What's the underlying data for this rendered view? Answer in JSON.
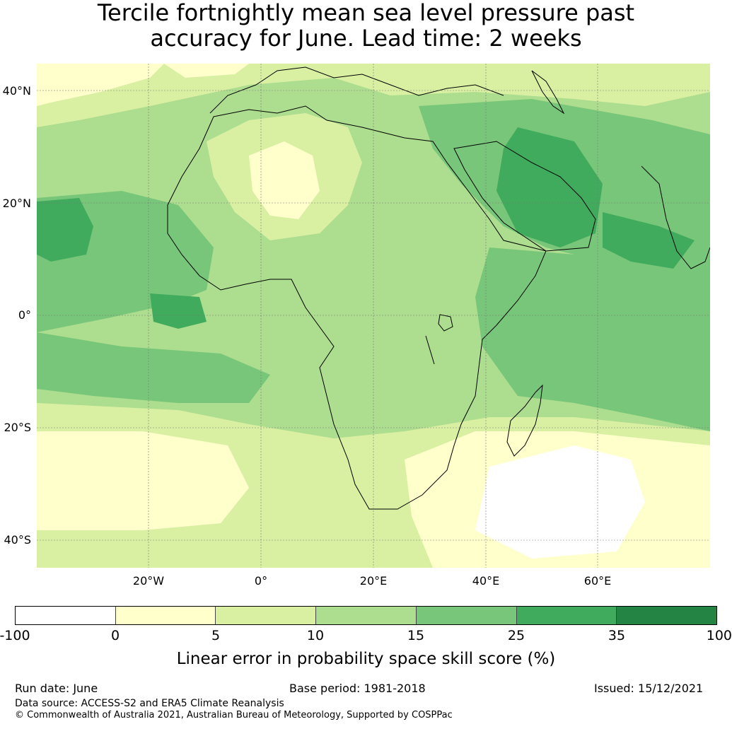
{
  "title": {
    "line1": "Tercile fortnightly mean sea level pressure past",
    "line2": "accuracy for June. Lead time: 2 weeks"
  },
  "map": {
    "lat_labels": [
      "40°N",
      "20°N",
      "0°",
      "20°S",
      "40°S"
    ],
    "lon_labels": [
      "20°W",
      "0°",
      "20°E",
      "40°E",
      "60°E"
    ]
  },
  "colorbar": {
    "ticks": [
      "-100",
      "0",
      "5",
      "10",
      "15",
      "25",
      "35",
      "100"
    ],
    "colors": [
      "#ffffff",
      "#ffffcc",
      "#d9f0a3",
      "#addd8e",
      "#78c679",
      "#41ab5d",
      "#238443"
    ],
    "label": "Linear error in probability space skill score (%)"
  },
  "footer": {
    "run_date": "Run date: June",
    "base_period": "Base period: 1981-2018",
    "issued": "Issued: 15/12/2021",
    "data_source": "Data source: ACCESS-S2 and ERA5 Climate Reanalysis",
    "copyright": "© Commonwealth of Australia 2021, Australian Bureau of Meteorology, Supported by COSPPac"
  }
}
